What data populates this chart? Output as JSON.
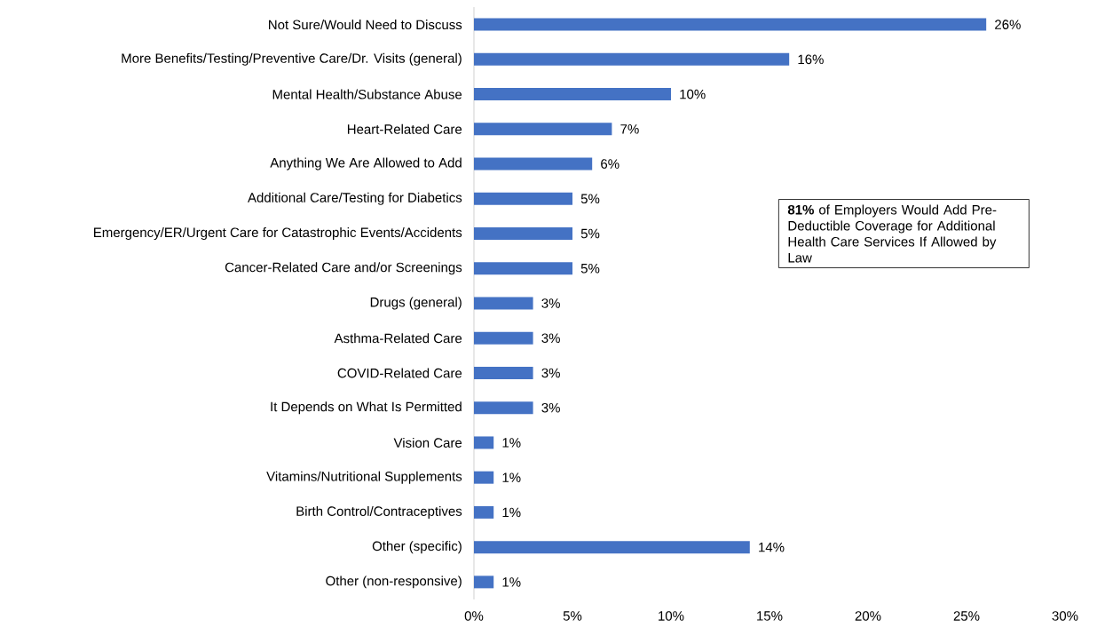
{
  "chart_data": {
    "type": "bar",
    "orientation": "horizontal",
    "categories": [
      "Not Sure/Would Need to Discuss",
      "More Benefits/Testing/Preventive Care/Dr. Visits (general)",
      "Mental Health/Substance Abuse",
      "Heart-Related Care",
      "Anything We Are Allowed to Add",
      "Additional Care/Testing for Diabetics",
      "Emergency/ER/Urgent Care for Catastrophic Events/Accidents",
      "Cancer-Related Care and/or Screenings",
      "Drugs (general)",
      "Asthma-Related Care",
      "COVID-Related Care",
      "It Depends on What Is Permitted",
      "Vision Care",
      "Vitamins/Nutritional Supplements",
      "Birth Control/Contraceptives",
      "Other (specific)",
      "Other (non-responsive)"
    ],
    "values": [
      26,
      16,
      10,
      7,
      6,
      5,
      5,
      5,
      3,
      3,
      3,
      3,
      1,
      1,
      1,
      14,
      1
    ],
    "value_labels": [
      "26%",
      "16%",
      "10%",
      "7%",
      "6%",
      "5%",
      "5%",
      "5%",
      "3%",
      "3%",
      "3%",
      "3%",
      "1%",
      "1%",
      "1%",
      "14%",
      "1%"
    ],
    "color": "#4472c4",
    "xlim": [
      0,
      30
    ],
    "xticks": [
      {
        "value": 0,
        "label": "0%"
      },
      {
        "value": 5,
        "label": "5%"
      },
      {
        "value": 10,
        "label": "10%"
      },
      {
        "value": 15,
        "label": "15%"
      },
      {
        "value": 20,
        "label": "20%"
      },
      {
        "value": 25,
        "label": "25%"
      },
      {
        "value": 30,
        "label": "30%"
      }
    ],
    "annotations": [
      "**81%** of Employers Would Add Pre-Deductible Coverage for Additional Health Care Services If Allowed by Law"
    ]
  }
}
